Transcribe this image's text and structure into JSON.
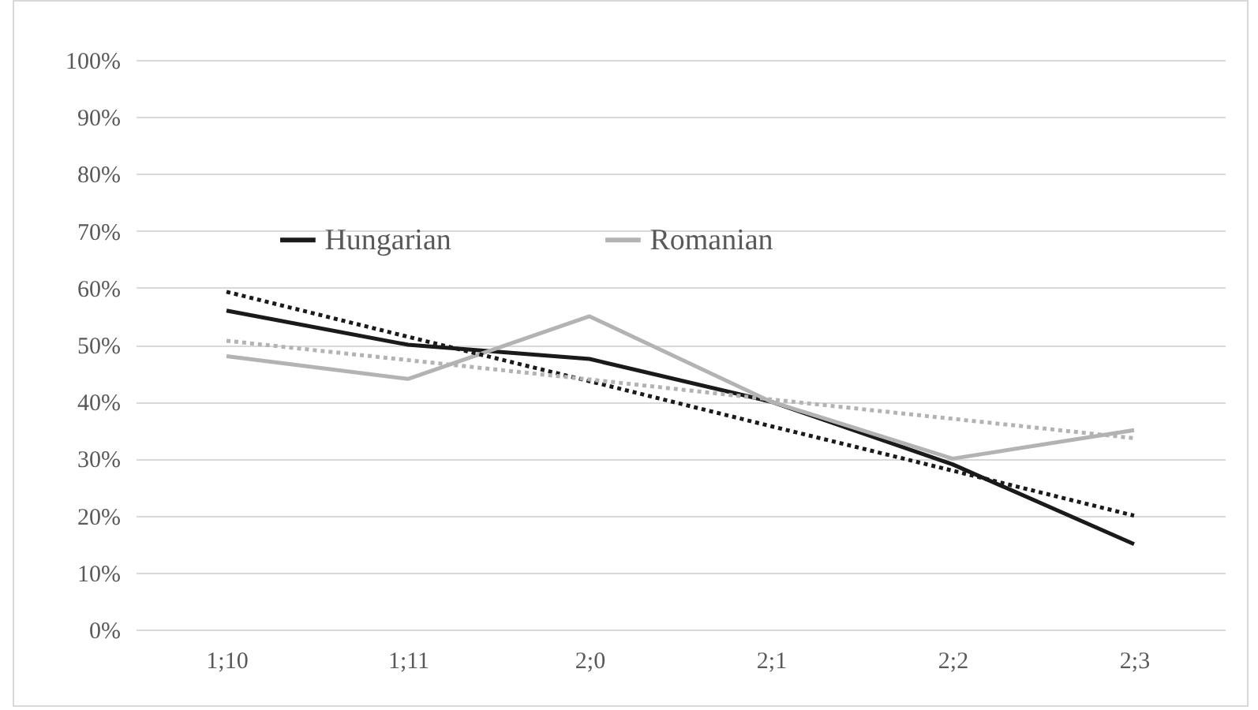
{
  "chart_data": {
    "type": "line",
    "categories": [
      "1;10",
      "1;11",
      "2;0",
      "2;1",
      "2;2",
      "2;3"
    ],
    "series": [
      {
        "name": "Hungarian",
        "color": "#1a1a1a",
        "values": [
          56,
          50,
          47.5,
          40,
          29,
          15
        ]
      },
      {
        "name": "Romanian",
        "color": "#b3b3b3",
        "values": [
          48,
          44,
          55,
          40,
          30,
          35
        ]
      },
      {
        "type": "line",
        "color": "#1a1a1a",
        "line_style": "dotted",
        "values": [
          59.3,
          51.4,
          43.6,
          35.7,
          27.9,
          20
        ]
      },
      {
        "type": "line",
        "color": "#b3b3b3",
        "line_style": "dotted",
        "values": [
          50.7,
          47.3,
          43.9,
          40.4,
          37,
          33.6
        ]
      }
    ],
    "ylim": [
      0,
      100
    ],
    "yticks": [
      {
        "value": 0,
        "label": "0%"
      },
      {
        "value": 10,
        "label": "10%"
      },
      {
        "value": 20,
        "label": "20%"
      },
      {
        "value": 30,
        "label": "30%"
      },
      {
        "value": 40,
        "label": "40%"
      },
      {
        "value": 50,
        "label": "50%"
      },
      {
        "value": 60,
        "label": "60%"
      },
      {
        "value": 70,
        "label": "70%"
      },
      {
        "value": 80,
        "label": "80%"
      },
      {
        "value": 90,
        "label": "90%"
      },
      {
        "value": 100,
        "label": "100%"
      }
    ],
    "grid": "y",
    "legend": "top",
    "line_style": "solid",
    "marker": "none"
  }
}
